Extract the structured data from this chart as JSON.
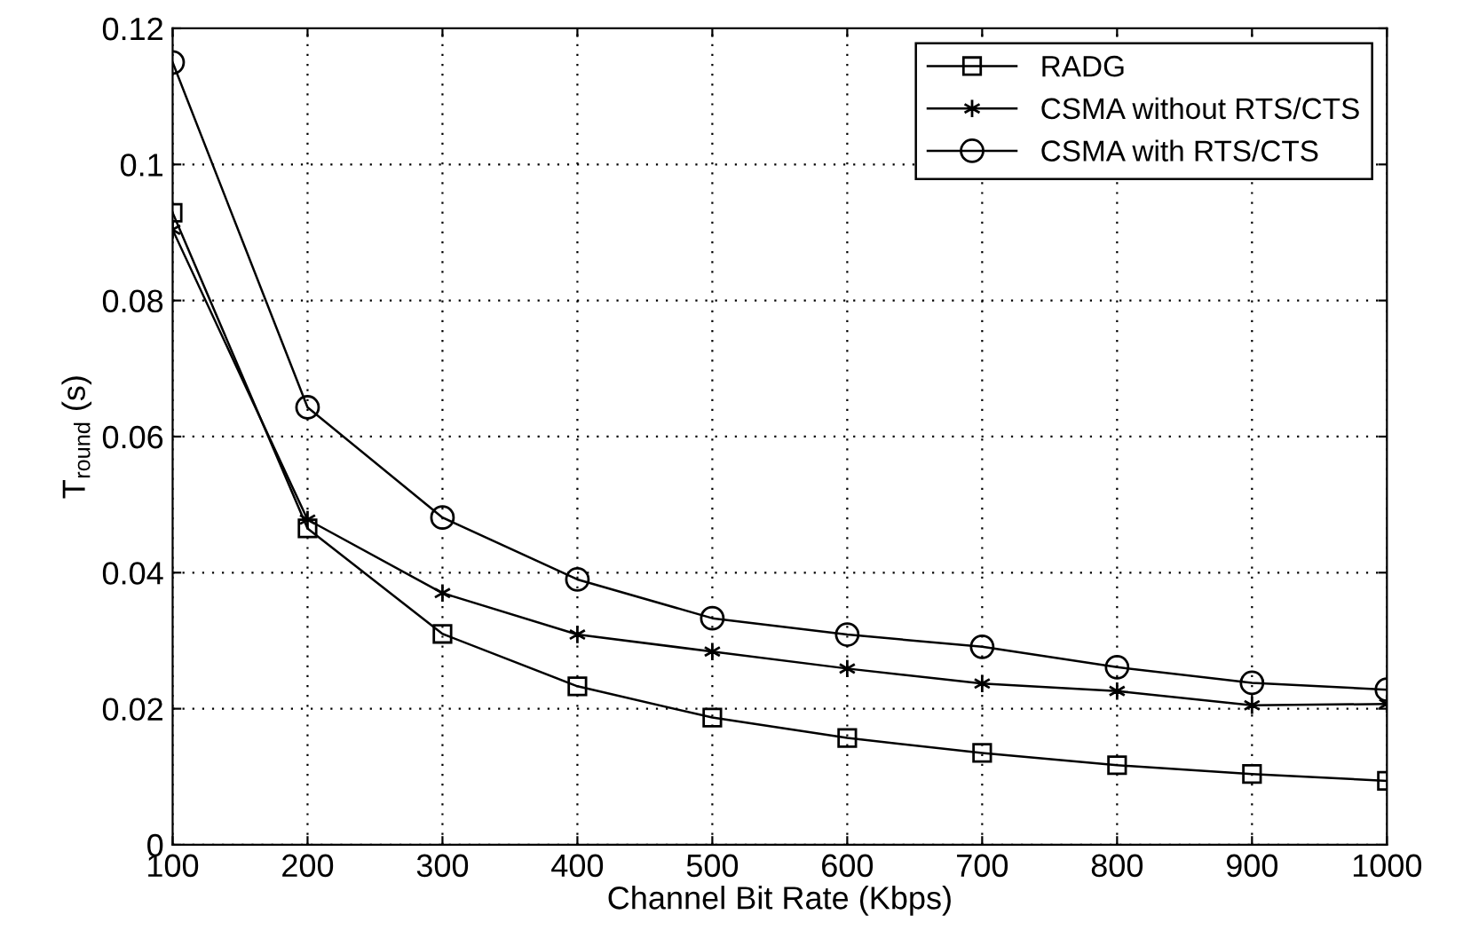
{
  "chart_data": {
    "type": "line",
    "xlabel": "Channel Bit Rate (Kbps)",
    "ylabel": "T$_{round}$ (s)",
    "x": [
      100,
      200,
      300,
      400,
      500,
      600,
      700,
      800,
      900,
      1000
    ],
    "series": [
      {
        "name": "RADG",
        "color": "#000000",
        "marker": "square",
        "values": [
          0.0929,
          0.0465,
          0.031,
          0.0233,
          0.0187,
          0.0157,
          0.0135,
          0.0117,
          0.0104,
          0.0094
        ]
      },
      {
        "name": "CSMA without RTS/CTS",
        "color": "#000000",
        "marker": "cross",
        "values": [
          0.0904,
          0.0478,
          0.037,
          0.0309,
          0.0284,
          0.0259,
          0.0237,
          0.0226,
          0.0205,
          0.0207
        ]
      },
      {
        "name": "CSMA with RTS/CTS",
        "color": "#000000",
        "marker": "circle",
        "values": [
          0.115,
          0.0643,
          0.0481,
          0.039,
          0.0333,
          0.0309,
          0.0291,
          0.0261,
          0.0238,
          0.0228
        ]
      }
    ],
    "xlim": [
      100,
      1000
    ],
    "xticks": [
      100,
      200,
      300,
      400,
      500,
      600,
      700,
      800,
      900,
      1000
    ],
    "ylim": [
      0,
      0.12
    ],
    "yticks": [
      0,
      0.02,
      0.04,
      0.06,
      0.08,
      0.1,
      0.12
    ],
    "grid": true,
    "legend": "top right",
    "line_style": "solid"
  }
}
